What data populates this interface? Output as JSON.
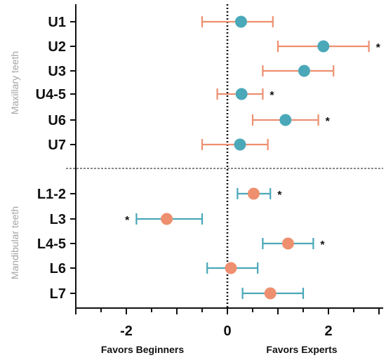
{
  "chart_data": {
    "type": "forest",
    "xlim": [
      -3,
      3
    ],
    "x_ticks": [
      -2,
      0,
      2
    ],
    "x_tick_labels": [
      "-2",
      "0",
      "2"
    ],
    "reference_line": 0,
    "favors_left": "Favors Beginners",
    "favors_right": "Favors Experts",
    "colors": {
      "teal": "#4aa8b8",
      "salmon": "#ee8f6f"
    },
    "groups": [
      {
        "name": "Maxillary teeth",
        "marker_color": "#4aa8b8",
        "ci_color": "#ee8f6f",
        "rows": [
          {
            "label": "U1",
            "estimate": 0.27,
            "lower": -0.5,
            "upper": 0.9,
            "significant": ""
          },
          {
            "label": "U2",
            "estimate": 1.9,
            "lower": 1.0,
            "upper": 2.8,
            "significant": "*"
          },
          {
            "label": "U3",
            "estimate": 1.52,
            "lower": 0.7,
            "upper": 2.1,
            "significant": ""
          },
          {
            "label": "U4-5",
            "estimate": 0.28,
            "lower": -0.2,
            "upper": 0.7,
            "significant": "*"
          },
          {
            "label": "U6",
            "estimate": 1.15,
            "lower": 0.5,
            "upper": 1.8,
            "significant": "*"
          },
          {
            "label": "U7",
            "estimate": 0.25,
            "lower": -0.5,
            "upper": 0.8,
            "significant": ""
          }
        ]
      },
      {
        "name": "Mandibular teeth",
        "marker_color": "#ee8f6f",
        "ci_color": "#4aa8b8",
        "rows": [
          {
            "label": "L1-2",
            "estimate": 0.52,
            "lower": 0.2,
            "upper": 0.85,
            "significant": "*"
          },
          {
            "label": "L3",
            "estimate": -1.2,
            "lower": -1.8,
            "upper": -0.5,
            "significant": "*"
          },
          {
            "label": "L4-5",
            "estimate": 1.2,
            "lower": 0.7,
            "upper": 1.7,
            "significant": "*"
          },
          {
            "label": "L6",
            "estimate": 0.07,
            "lower": -0.4,
            "upper": 0.6,
            "significant": ""
          },
          {
            "label": "L7",
            "estimate": 0.85,
            "lower": 0.3,
            "upper": 1.5,
            "significant": ""
          }
        ]
      }
    ]
  }
}
